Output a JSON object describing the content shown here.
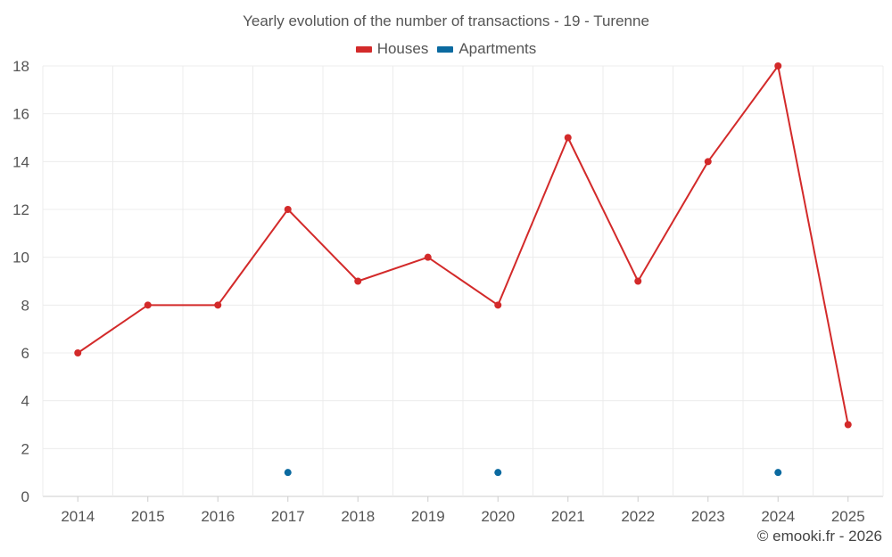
{
  "chart_data": {
    "type": "line",
    "title": "Yearly evolution of the number of transactions - 19 - Turenne",
    "categories": [
      "2014",
      "2015",
      "2016",
      "2017",
      "2018",
      "2019",
      "2020",
      "2021",
      "2022",
      "2023",
      "2024",
      "2025"
    ],
    "series": [
      {
        "name": "Houses",
        "color": "#d32a2a",
        "values": [
          6,
          8,
          8,
          12,
          9,
          10,
          8,
          15,
          9,
          14,
          18,
          3
        ]
      },
      {
        "name": "Apartments",
        "color": "#0b6aa0",
        "values": [
          null,
          null,
          null,
          1,
          null,
          null,
          1,
          null,
          null,
          null,
          1,
          null
        ]
      }
    ],
    "ylim": [
      0,
      18
    ],
    "yticks": [
      0,
      2,
      4,
      6,
      8,
      10,
      12,
      14,
      16,
      18
    ],
    "grid": true,
    "legend": "top-center",
    "xlabel": "",
    "ylabel": ""
  },
  "credit": "© emooki.fr - 2026"
}
